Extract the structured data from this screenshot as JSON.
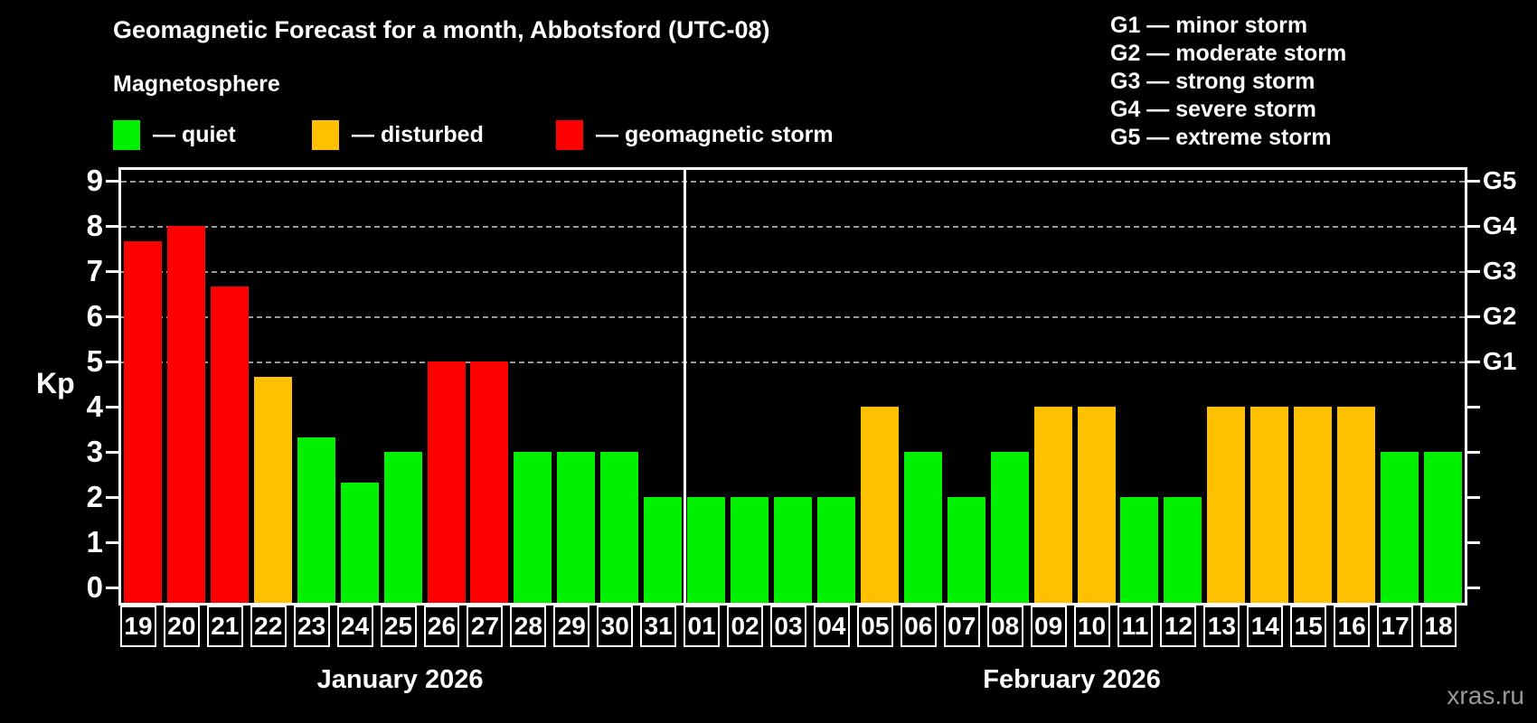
{
  "header": {
    "subtitle": "Magnetosphere",
    "legend": {
      "items": [
        {
          "label": "— quiet",
          "status": "quiet"
        },
        {
          "label": "— disturbed",
          "status": "disturbed"
        },
        {
          "label": "— geomagnetic storm",
          "status": "storm"
        }
      ]
    },
    "g_legend": [
      "G1 — minor storm",
      "G2 — moderate storm",
      "G3 — strong storm",
      "G4 — severe storm",
      "G5 — extreme storm"
    ]
  },
  "chart_data": {
    "type": "bar",
    "title": "Geomagnetic Forecast for a month, Abbotsford (UTC-08)",
    "ylabel": "Kp",
    "ylim": [
      -0.4,
      9.3
    ],
    "yticks": [
      0,
      1,
      2,
      3,
      4,
      5,
      6,
      7,
      8,
      9
    ],
    "gridlines_at": [
      5,
      6,
      7,
      8,
      9
    ],
    "grid": true,
    "legend_position": "top",
    "right_axis_labels": [
      {
        "label": "G1",
        "tick": 5
      },
      {
        "label": "G2",
        "tick": 6
      },
      {
        "label": "G3",
        "tick": 7
      },
      {
        "label": "G4",
        "tick": 8
      },
      {
        "label": "G5",
        "tick": 9
      }
    ],
    "months": [
      {
        "label": "January 2026",
        "day_count": 13
      },
      {
        "label": "February 2026",
        "day_count": 18
      }
    ],
    "categories": [
      "19",
      "20",
      "21",
      "22",
      "23",
      "24",
      "25",
      "26",
      "27",
      "28",
      "29",
      "30",
      "31",
      "01",
      "02",
      "03",
      "04",
      "05",
      "06",
      "07",
      "08",
      "09",
      "10",
      "11",
      "12",
      "13",
      "14",
      "15",
      "16",
      "17",
      "18"
    ],
    "series": [
      {
        "name": "Kp forecast",
        "values": [
          7.67,
          8,
          6.67,
          4.67,
          3.33,
          2.33,
          3,
          5,
          5,
          3,
          3,
          3,
          2,
          2,
          2,
          2,
          2,
          4,
          3,
          2,
          3,
          4,
          4,
          2,
          2,
          4,
          4,
          4,
          4,
          3,
          3
        ],
        "status": [
          "storm",
          "storm",
          "storm",
          "disturbed",
          "quiet",
          "quiet",
          "quiet",
          "storm",
          "storm",
          "quiet",
          "quiet",
          "quiet",
          "quiet",
          "quiet",
          "quiet",
          "quiet",
          "quiet",
          "disturbed",
          "quiet",
          "quiet",
          "quiet",
          "disturbed",
          "disturbed",
          "quiet",
          "quiet",
          "disturbed",
          "disturbed",
          "disturbed",
          "disturbed",
          "quiet",
          "quiet"
        ]
      }
    ]
  },
  "colors": {
    "quiet": "#00F000",
    "disturbed": "#FFC000",
    "storm": "#FF0000",
    "grid": "#999999",
    "axis": "#FFFFFF",
    "background": "#000000",
    "watermark": "#999999"
  },
  "watermark": "xras.ru"
}
